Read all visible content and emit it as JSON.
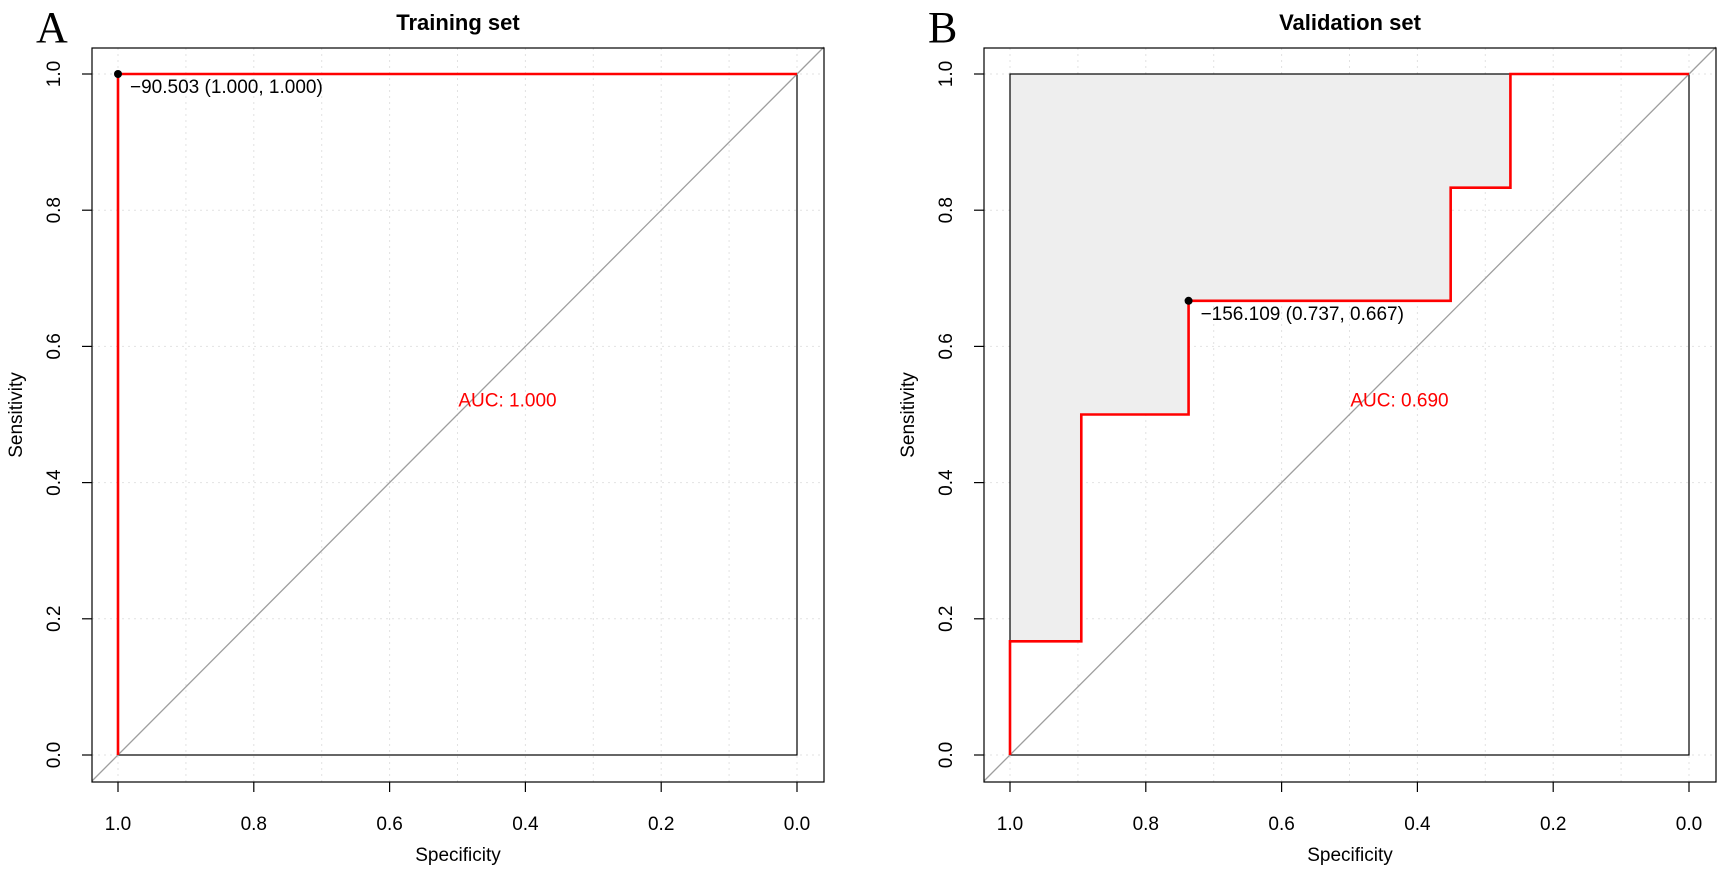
{
  "colors": {
    "roc_line": "#ff0000",
    "diagonal": "#9e9e9e",
    "grid": "#e2e2e2",
    "auc_fill": "#eeeeee",
    "auc_text": "#ff0000"
  },
  "chart_data": [
    {
      "type": "line",
      "panel_label": "A",
      "title": "Training set",
      "xlabel": "Specificity",
      "ylabel": "Sensitivity",
      "xlim": [
        1.0,
        0.0
      ],
      "ylim": [
        0.0,
        1.0
      ],
      "x_reversed": true,
      "grid": true,
      "x_ticks": [
        "1.0",
        "0.8",
        "0.6",
        "0.4",
        "0.2",
        "0.0"
      ],
      "y_ticks": [
        "0.0",
        "0.2",
        "0.4",
        "0.6",
        "0.8",
        "1.0"
      ],
      "series": [
        {
          "points": [
            [
              1.0,
              0.0
            ],
            [
              1.0,
              1.0
            ],
            [
              0.0,
              1.0
            ]
          ]
        }
      ],
      "auc_polygon": false,
      "threshold_point": {
        "specificity": 1.0,
        "sensitivity": 1.0,
        "label": "−90.503 (1.000, 1.000)"
      },
      "auc_label": {
        "text": "AUC: 1.000",
        "specificity": 0.5,
        "sensitivity": 0.5
      }
    },
    {
      "type": "line",
      "panel_label": "B",
      "title": "Validation set",
      "xlabel": "Specificity",
      "ylabel": "Sensitivity",
      "xlim": [
        1.0,
        0.0
      ],
      "ylim": [
        0.0,
        1.0
      ],
      "x_reversed": true,
      "grid": true,
      "x_ticks": [
        "1.0",
        "0.8",
        "0.6",
        "0.4",
        "0.2",
        "0.0"
      ],
      "y_ticks": [
        "0.0",
        "0.2",
        "0.4",
        "0.6",
        "0.8",
        "1.0"
      ],
      "series": [
        {
          "points": [
            [
              1.0,
              0.0
            ],
            [
              1.0,
              0.167
            ],
            [
              0.895,
              0.167
            ],
            [
              0.895,
              0.5
            ],
            [
              0.737,
              0.5
            ],
            [
              0.737,
              0.667
            ],
            [
              0.351,
              0.667
            ],
            [
              0.351,
              0.833
            ],
            [
              0.263,
              0.833
            ],
            [
              0.263,
              1.0
            ],
            [
              0.0,
              1.0
            ]
          ]
        }
      ],
      "auc_polygon": true,
      "threshold_point": {
        "specificity": 0.737,
        "sensitivity": 0.667,
        "label": "−156.109 (0.737, 0.667)"
      },
      "auc_label": {
        "text": "AUC: 0.690",
        "specificity": 0.5,
        "sensitivity": 0.5
      }
    }
  ]
}
